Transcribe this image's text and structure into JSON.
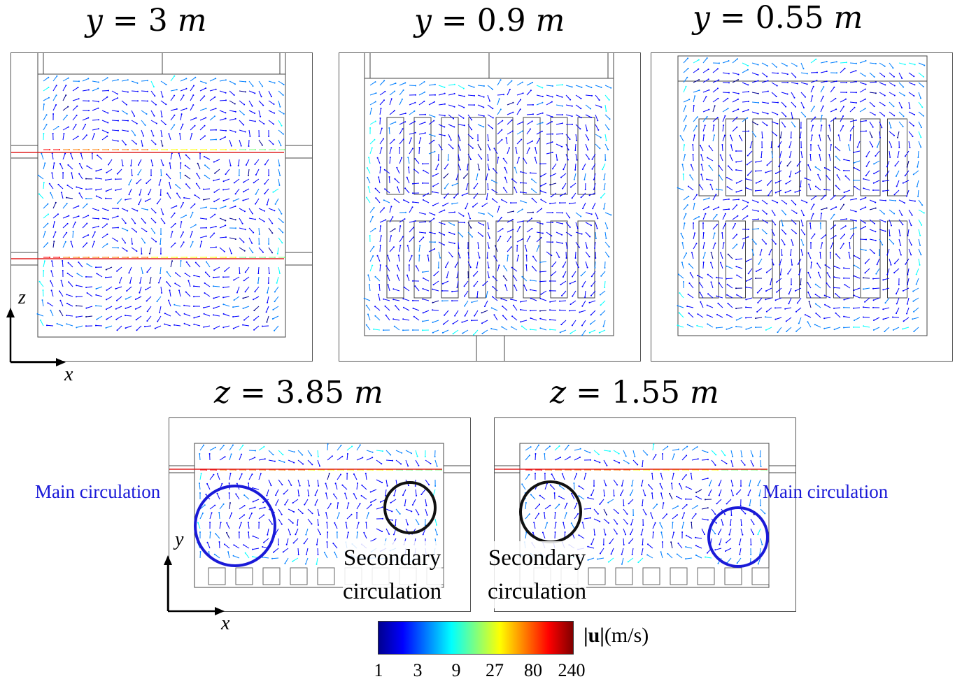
{
  "titles": {
    "p1": {
      "var": "y",
      "eq": " = 3 ",
      "unit": "m"
    },
    "p2": {
      "var": "y",
      "eq": " = 0.9 ",
      "unit": "m"
    },
    "p3": {
      "var": "y",
      "eq": " = 0.55 ",
      "unit": "m"
    },
    "p4": {
      "var": "z",
      "eq": " = 3.85 ",
      "unit": "m"
    },
    "p5": {
      "var": "z",
      "eq": " = 1.55 ",
      "unit": "m"
    }
  },
  "axes_top": {
    "vertical": "z",
    "horizontal": "x"
  },
  "axes_bottom": {
    "vertical": "y",
    "horizontal": "x"
  },
  "annotations": {
    "main_left": "Main circulation",
    "main_right": "Main circulation",
    "secondary_left_1": "Secondary",
    "secondary_left_2": "circulation",
    "secondary_right_1": "Secondary",
    "secondary_right_2": "circulation"
  },
  "colorbar": {
    "label_bold": "|u|",
    "label_unit": "(m/s)",
    "ticks": [
      "1",
      "3",
      "9",
      "27",
      "80",
      "240"
    ],
    "colors": [
      "#00008f",
      "#0000ff",
      "#007fff",
      "#00ffff",
      "#7fff7f",
      "#ffff00",
      "#ff7f00",
      "#ff0000",
      "#7f0000"
    ]
  },
  "colors": {
    "circle_main": "#1a1ad8",
    "circle_secondary": "#111111",
    "arrow_slow": "#1a1aa0",
    "jet_fast": "#e02020"
  }
}
